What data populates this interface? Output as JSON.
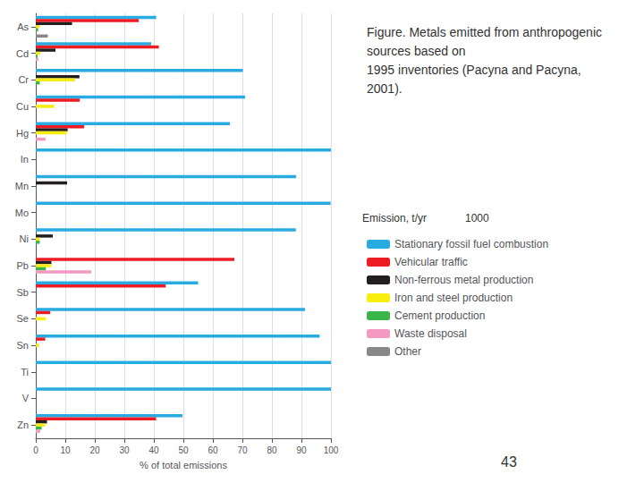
{
  "chart_data": {
    "type": "bar",
    "orientation": "horizontal",
    "title": "Figure. Metals emitted from anthropogenic\nsources based on\n1995 inventories (Pacyna and Pacyna,\n2001).",
    "legend_title": "Emission, t/yr",
    "annotations": [
      "1000",
      "43"
    ],
    "xlabel": "% of total emissions",
    "categories": [
      "As",
      "Cd",
      "Cr",
      "Cu",
      "Hg",
      "In",
      "Mn",
      "Mo",
      "Ni",
      "Pb",
      "Sb",
      "Se",
      "Sn",
      "Ti",
      "V",
      "Zn"
    ],
    "series": [
      {
        "name": "Stationary fossil fuel combustion",
        "color": "#29abe2",
        "values": [
          40.8,
          39.1,
          70.15,
          70.91,
          65.78,
          100.0,
          88.17,
          99.9,
          88.12,
          0.0,
          55.0,
          91.21,
          96.17,
          100.0,
          100.0,
          49.72
        ]
      },
      {
        "name": "Vehicular traffic",
        "color": "#ed1c24",
        "values": [
          34.87,
          41.71,
          0.0,
          14.89,
          16.4,
          0.0,
          0.0,
          0.0,
          0.0,
          67.26,
          44.0,
          4.9,
          3.18,
          0.0,
          0.0,
          40.75
        ]
      },
      {
        "name": "Non-ferrous metal production",
        "color": "#231f20",
        "values": [
          12.3,
          6.7,
          14.8,
          0.0,
          10.8,
          0.0,
          10.6,
          0.0,
          5.76,
          5.3,
          0.0,
          0.0,
          0.0,
          0.0,
          0.0,
          3.8
        ]
      },
      {
        "name": "Iron and steel production",
        "color": "#f7ee10",
        "values": [
          1.3,
          1.5,
          13.3,
          6.21,
          10.5,
          0.0,
          0.0,
          0.0,
          1.36,
          5.25,
          0.0,
          3.41,
          1.18,
          0.0,
          0.0,
          3.2
        ]
      },
      {
        "name": "Cement production",
        "color": "#39b54a",
        "values": [
          0.8,
          0.6,
          1.35,
          0.0,
          0.0,
          0.0,
          0.11,
          0.0,
          1.35,
          3.41,
          0.0,
          0.0,
          0.0,
          0.0,
          0.0,
          2.0
        ]
      },
      {
        "name": "Waste disposal",
        "color": "#f49ac2",
        "values": [
          0.1,
          0.9,
          0.0,
          0.0,
          3.28,
          0.0,
          0.0,
          0.0,
          0.0,
          18.8,
          0.0,
          0.0,
          0.0,
          0.0,
          0.0,
          1.5
        ]
      },
      {
        "name": "Other",
        "color": "#888888",
        "values": [
          4.1,
          0.0,
          0.0,
          0.0,
          0.0,
          0.0,
          0.0,
          0.0,
          0.0,
          0.0,
          0.0,
          0.0,
          0.0,
          0.0,
          0.0,
          0.0
        ]
      }
    ],
    "xlim": [
      0,
      100
    ],
    "xticks": [
      0,
      10,
      20,
      30,
      40,
      50,
      60,
      70,
      80,
      90,
      100
    ],
    "grid": true,
    "legend": "right"
  }
}
